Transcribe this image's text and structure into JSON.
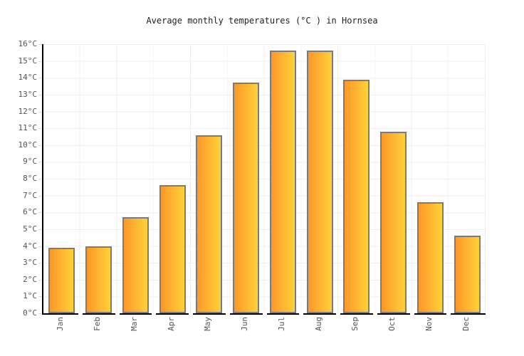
{
  "page": {
    "background": "#ffffff"
  },
  "chart_data": {
    "type": "bar",
    "title": "Average monthly temperatures (°C ) in Hornsea",
    "categories": [
      "Jan",
      "Feb",
      "Mar",
      "Apr",
      "May",
      "Jun",
      "Jul",
      "Aug",
      "Sep",
      "Oct",
      "Nov",
      "Dec"
    ],
    "values": [
      3.9,
      4.0,
      5.7,
      7.6,
      10.6,
      13.7,
      15.6,
      15.6,
      13.9,
      10.8,
      6.6,
      4.6
    ],
    "series_name": "Average monthly temperature",
    "xlabel": "",
    "ylabel": "",
    "ylim": [
      0,
      16
    ],
    "ytick_step": 1,
    "ytick_labels": [
      "0°C",
      "1°C",
      "2°C",
      "3°C",
      "4°C",
      "5°C",
      "6°C",
      "7°C",
      "8°C",
      "9°C",
      "10°C",
      "11°C",
      "12°C",
      "13°C",
      "14°C",
      "15°C",
      "16°C"
    ],
    "grid": true,
    "legend": "none",
    "colors": {
      "bar_gradient_left": "#fc982a",
      "bar_gradient_right": "#ffd139",
      "bar_border": "#7b7b7b",
      "axis": "#000000",
      "gridline": "#ededed",
      "tick_mark": "#dddddd",
      "tick_label": "#545454",
      "title_text": "#222222"
    }
  }
}
